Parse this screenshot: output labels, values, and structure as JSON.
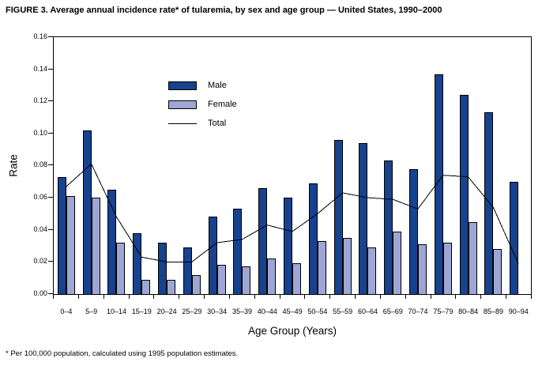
{
  "figure": {
    "title": "FIGURE 3. Average annual incidence rate* of tularemia, by sex and age group — United States, 1990–2000",
    "ylabel": "Rate",
    "xlabel": "Age Group (Years)",
    "footnote": "* Per 100,000 population, calculated using 1995 population estimates."
  },
  "legend": {
    "male": "Male",
    "female": "Female",
    "total": "Total"
  },
  "colors": {
    "male_bar": "#17428E",
    "female_bar": "#9DA6D4",
    "total_line": "#000000",
    "axis": "#000000",
    "background": "#FFFFFF"
  },
  "chart_data": {
    "type": "bar",
    "subtype": "grouped bars with overlaid line series",
    "title": "FIGURE 3. Average annual incidence rate* of tularemia, by sex and age group — United States, 1990–2000",
    "xlabel": "Age Group (Years)",
    "ylabel": "Rate",
    "ylim": [
      0,
      0.16
    ],
    "y_ticks": [
      "0.00",
      "0.02",
      "0.04",
      "0.06",
      "0.08",
      "0.10",
      "0.12",
      "0.14",
      "0.16"
    ],
    "grid": false,
    "legend_position": "inside upper-left of plot",
    "categories": [
      "0–4",
      "5–9",
      "10–14",
      "15–19",
      "20–24",
      "25–29",
      "30–34",
      "35–39",
      "40–44",
      "45–49",
      "50–54",
      "55–59",
      "60–64",
      "65–69",
      "70–74",
      "75–79",
      "80–84",
      "85–89",
      "90–94"
    ],
    "series": [
      {
        "name": "Male",
        "render": "bar",
        "color": "#17428E",
        "values": [
          0.073,
          0.102,
          0.065,
          0.038,
          0.032,
          0.029,
          0.048,
          0.053,
          0.066,
          0.06,
          0.069,
          0.096,
          0.094,
          0.083,
          0.078,
          0.137,
          0.124,
          0.113,
          0.07
        ]
      },
      {
        "name": "Female",
        "render": "bar",
        "color": "#9DA6D4",
        "values": [
          0.061,
          0.06,
          0.032,
          0.009,
          0.009,
          0.012,
          0.018,
          0.017,
          0.022,
          0.019,
          0.033,
          0.035,
          0.029,
          0.039,
          0.031,
          0.032,
          0.045,
          0.028,
          0.0
        ]
      },
      {
        "name": "Total",
        "render": "line",
        "color": "#000000",
        "values": [
          0.067,
          0.081,
          0.048,
          0.023,
          0.02,
          0.02,
          0.032,
          0.034,
          0.043,
          0.039,
          0.05,
          0.063,
          0.06,
          0.059,
          0.053,
          0.074,
          0.073,
          0.054,
          0.019
        ]
      }
    ]
  }
}
